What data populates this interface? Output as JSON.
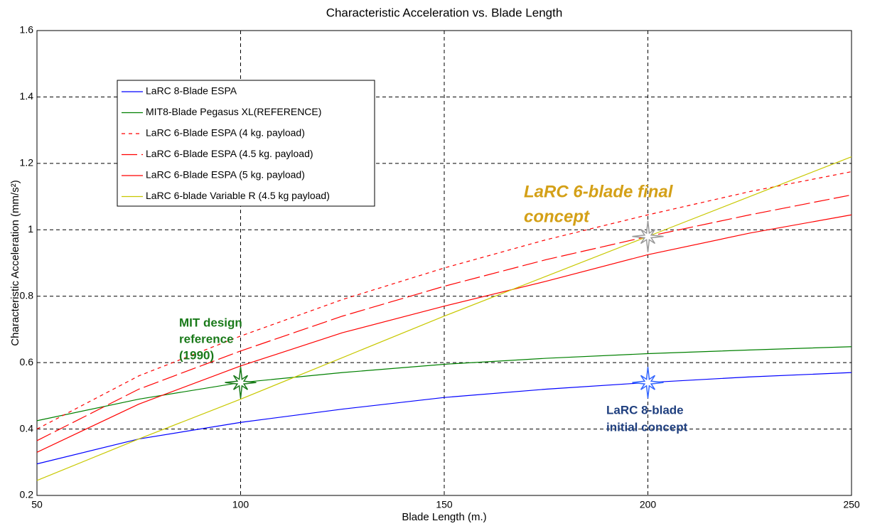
{
  "chart_data": {
    "type": "line",
    "title": "Characteristic Acceleration vs. Blade Length",
    "xlabel": "Blade Length (m.)",
    "ylabel": "Characteristic Acceleration (mm/s²)",
    "x": [
      50,
      75,
      100,
      125,
      150,
      175,
      200,
      225,
      250
    ],
    "series": [
      {
        "name": "LaRC 8-Blade ESPA",
        "color": "#0000ff",
        "style": "solid",
        "values": [
          0.295,
          0.37,
          0.42,
          0.46,
          0.495,
          0.52,
          0.54,
          0.557,
          0.57
        ]
      },
      {
        "name": "MIT8-Blade Pegasus XL(REFERENCE)",
        "color": "#008000",
        "style": "solid",
        "values": [
          0.425,
          0.49,
          0.54,
          0.57,
          0.595,
          0.613,
          0.627,
          0.638,
          0.648
        ]
      },
      {
        "name": "LaRC 6-Blade ESPA (4 kg. payload)",
        "color": "#ff0000",
        "style": "short-dash",
        "values": [
          0.4,
          0.56,
          0.68,
          0.79,
          0.885,
          0.97,
          1.045,
          1.115,
          1.175
        ]
      },
      {
        "name": "LaRC 6-Blade ESPA (4.5 kg. payload)",
        "color": "#ff0000",
        "style": "long-dash",
        "values": [
          0.365,
          0.52,
          0.635,
          0.74,
          0.83,
          0.91,
          0.98,
          1.045,
          1.105
        ]
      },
      {
        "name": "LaRC 6-Blade ESPA (5 kg. payload)",
        "color": "#ff0000",
        "style": "solid",
        "values": [
          0.33,
          0.475,
          0.59,
          0.69,
          0.77,
          0.845,
          0.925,
          0.99,
          1.045
        ]
      },
      {
        "name": "LaRC 6-blade Variable R (4.5 kg payload)",
        "color": "#c8c800",
        "style": "solid",
        "values": [
          0.245,
          0.37,
          0.49,
          0.615,
          0.74,
          0.86,
          0.98,
          1.1,
          1.22
        ]
      }
    ],
    "markers": [
      {
        "x": 100,
        "y": 0.54,
        "color": "#1a7a1a"
      },
      {
        "x": 200,
        "y": 0.54,
        "color": "#3366ff"
      },
      {
        "x": 200,
        "y": 0.98,
        "color": "#999999"
      }
    ],
    "annotations": [
      {
        "lines": [
          "MIT design",
          "reference",
          "(1990)"
        ],
        "color": "#1a7a1a"
      },
      {
        "lines": [
          "LaRC 6-blade final",
          "concept"
        ],
        "color": "#d4a017"
      },
      {
        "lines": [
          "LaRC 8-blade",
          "initial concept"
        ],
        "color": "#1f3f7f"
      }
    ],
    "xlim": [
      50,
      250
    ],
    "xticks": [
      50,
      100,
      150,
      200,
      250
    ],
    "ylim": [
      0.2,
      1.6
    ],
    "yticks": [
      0.2,
      0.4,
      0.6,
      0.8,
      1,
      1.2,
      1.4,
      1.6
    ],
    "grid": true,
    "legend": "upper left"
  }
}
